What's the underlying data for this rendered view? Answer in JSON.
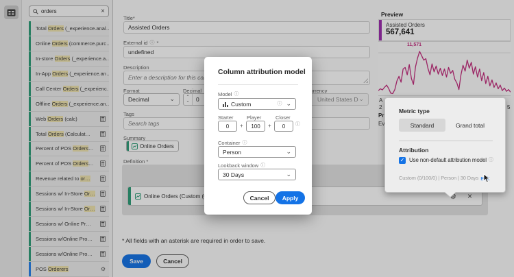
{
  "left_rail": {
    "panel_icon": "metrics-panel-icon"
  },
  "sidebar": {
    "search": {
      "value": "orders"
    },
    "items": [
      {
        "pre": "Total ",
        "hl": "Orders",
        "post": " (_experience.anal…",
        "icon": null,
        "bar": "green"
      },
      {
        "pre": "Online ",
        "hl": "Orders",
        "post": " (commerce.purc…",
        "icon": null,
        "bar": "green"
      },
      {
        "pre": "In-store ",
        "hl": "Orders",
        "post": " (_experience.a…",
        "icon": null,
        "bar": "green"
      },
      {
        "pre": "In-App ",
        "hl": "Orders",
        "post": " (_experience.an…",
        "icon": null,
        "bar": "green"
      },
      {
        "pre": "Call Center ",
        "hl": "Orders",
        "post": " (_experienc…",
        "icon": null,
        "bar": "green"
      },
      {
        "pre": "Offline ",
        "hl": "Orders",
        "post": " (_experience.an…",
        "icon": null,
        "bar": "green"
      },
      {
        "pre": "Web ",
        "hl": "Orders",
        "post": " (calc)",
        "icon": "calculator",
        "bar": "green"
      },
      {
        "pre": "Total ",
        "hl": "Orders",
        "post": " (Calculat…",
        "icon": "calculator",
        "bar": "green"
      },
      {
        "pre": "Percent of POS ",
        "hl": "Orders",
        "post": "…",
        "icon": "calculator",
        "bar": "green"
      },
      {
        "pre": "Percent of POS ",
        "hl": "Orders",
        "post": "…",
        "icon": "calculator",
        "bar": "green"
      },
      {
        "pre": "Revenue related to ",
        "hl": "or…",
        "post": "",
        "icon": "calculator",
        "bar": "green"
      },
      {
        "pre": "Sessions w/ In-Store ",
        "hl": "Or…",
        "post": "",
        "icon": "calculator",
        "bar": "green"
      },
      {
        "pre": "Sessions w/ In-Store ",
        "hl": "Or…",
        "post": "",
        "icon": "calculator",
        "bar": "green"
      },
      {
        "pre": "Sessions w/ Online Pr…",
        "hl": "",
        "post": "",
        "icon": "calculator",
        "bar": "green"
      },
      {
        "pre": "Sessions w/Online Pro…",
        "hl": "",
        "post": "",
        "icon": "calculator",
        "bar": "green"
      },
      {
        "pre": "Sessions w/Online Pro…",
        "hl": "",
        "post": "",
        "icon": "calculator",
        "bar": "green"
      },
      {
        "pre": "POS ",
        "hl": "Orderers",
        "post": "",
        "icon": "gear",
        "bar": "blue"
      }
    ]
  },
  "form": {
    "title_label": "Title*",
    "title_value": "Assisted Orders",
    "external_id_label": "External id",
    "external_id_required": "*",
    "external_id_value": "undefined",
    "description_label": "Description",
    "description_placeholder": "Enter a description for this calculated metric",
    "format_label": "Format",
    "format_value": "Decimal",
    "decimal_places_label": "Decimal places",
    "decimal_places_value": "0",
    "currency_label": "Currency",
    "currency_value": "United States Dollar...",
    "tags_label": "Tags",
    "tags_placeholder": "Search tags",
    "summary_label": "Summary",
    "summary_chip": "Online Orders",
    "definition_label": "Definition *",
    "definition_chip": "Online Orders (Custom (0/100/0",
    "required_note": "* All fields with an asterisk are required in order to save.",
    "save_label": "Save",
    "cancel_label": "Cancel"
  },
  "modal": {
    "title": "Column attribution model",
    "model_label": "Model",
    "model_value": "Custom",
    "starter_label": "Starter",
    "player_label": "Player",
    "closer_label": "Closer",
    "starter_value": "0",
    "player_value": "100",
    "closer_value": "0",
    "plus": "+",
    "container_label": "Container",
    "container_value": "Person",
    "lookback_label": "Lookback window",
    "lookback_value": "30 Days",
    "cancel_label": "Cancel",
    "apply_label": "Apply"
  },
  "preview": {
    "heading": "Preview",
    "card_title": "Assisted Orders",
    "card_value": "567,641",
    "clipped_fragments": {
      "a": "A",
      "two": "2",
      "pr": "Pr",
      "ev": "Ev",
      "five": "5"
    }
  },
  "popover": {
    "metric_type_label": "Metric type",
    "standard_label": "Standard",
    "grand_total_label": "Grand total",
    "attribution_label": "Attribution",
    "checkbox_label": "Use non-default attribution model",
    "summary_text": "Custom (0/100/0) | Person | 30 Days",
    "edit_label": "Edit",
    "checkmark": "✓"
  },
  "chart_data": {
    "type": "line",
    "title": "Assisted Orders",
    "total": "567,641",
    "peak_label": "11,571",
    "peak_value": 11571,
    "ylim": [
      0,
      11571
    ],
    "legend_position": "none",
    "grid": "top-line-only",
    "values": [
      900,
      1400,
      1100,
      1800,
      2400,
      1500,
      200,
      100,
      1200,
      3500,
      4800,
      3200,
      6800,
      7200,
      5200,
      8000,
      4200,
      2600,
      7400,
      9800,
      11571,
      10400,
      9200,
      9600,
      7000,
      5200,
      8200,
      6000,
      7600,
      5400,
      7000,
      5000,
      6800,
      4600,
      7200,
      5600,
      6400,
      4000,
      3000,
      1200,
      5200,
      7800,
      6200,
      9200,
      7000,
      8600,
      5400,
      7400,
      4600,
      6800,
      3600,
      5800,
      2800,
      4800,
      2200,
      3800,
      1800,
      3000,
      1400,
      2400,
      900,
      1600,
      700,
      1200,
      500
    ]
  },
  "colors": {
    "accent_blue": "#1473e6",
    "chart_line": "#c2297b",
    "card_bar": "#9c2bad",
    "green_bar": "#2d9d78",
    "blue_bar": "#2680eb",
    "highlight": "#efe3ae"
  }
}
